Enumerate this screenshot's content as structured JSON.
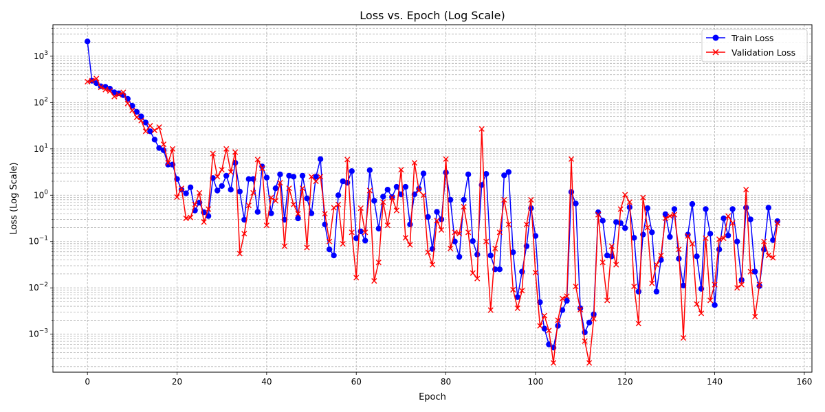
{
  "chart_data": {
    "type": "line",
    "title": "Loss vs. Epoch (Log Scale)",
    "xlabel": "Epoch",
    "ylabel": "Loss (Log Scale)",
    "yscale": "log",
    "xlim": [
      -7.7,
      161.7
    ],
    "ylim_log10": [
      -3.82,
      3.68
    ],
    "x_ticks": [
      0,
      20,
      40,
      60,
      80,
      100,
      120,
      140,
      160
    ],
    "x_tick_labels": [
      "0",
      "20",
      "40",
      "60",
      "80",
      "100",
      "120",
      "140",
      "160"
    ],
    "y_tick_exponents": [
      -3,
      -2,
      -1,
      0,
      1,
      2,
      3
    ],
    "grid": true,
    "legend_position": "top-right",
    "series": [
      {
        "name": "Train Loss",
        "color": "#0000ff",
        "marker": "circle",
        "x_start": 0,
        "log10_values": [
          3.32,
          2.47,
          2.42,
          2.35,
          2.34,
          2.3,
          2.22,
          2.2,
          2.16,
          2.08,
          1.93,
          1.8,
          1.7,
          1.57,
          1.38,
          1.2,
          1.02,
          0.97,
          0.66,
          0.66,
          0.35,
          0.12,
          0.04,
          0.17,
          -0.33,
          -0.16,
          -0.37,
          -0.45,
          0.37,
          0.1,
          0.2,
          0.42,
          0.12,
          0.7,
          0.08,
          -0.53,
          0.35,
          0.35,
          -0.36,
          0.62,
          0.38,
          -0.39,
          0.15,
          0.45,
          -0.53,
          0.42,
          0.4,
          -0.5,
          0.42,
          -0.07,
          -0.39,
          0.4,
          0.78,
          -0.63,
          -1.17,
          -1.3,
          0.0,
          0.3,
          0.27,
          0.52,
          -0.93,
          -0.78,
          -0.98,
          0.54,
          -0.12,
          -0.72,
          -0.03,
          0.12,
          -0.04,
          0.18,
          0.02,
          0.18,
          -0.63,
          0.02,
          0.14,
          0.47,
          -0.47,
          -1.16,
          -0.36,
          -0.52,
          0.49,
          -0.1,
          -1.0,
          -1.33,
          -0.1,
          0.45,
          -0.99,
          -1.28,
          0.22,
          0.46,
          -1.3,
          -1.6,
          -1.6,
          0.43,
          0.5,
          -1.23,
          -2.2,
          -1.65,
          -1.1,
          -0.28,
          -0.88,
          -2.31,
          -2.88,
          -3.22,
          -3.29,
          -2.82,
          -2.48,
          -2.28,
          0.07,
          -0.18,
          -2.44,
          -2.96,
          -2.75,
          -2.57,
          -0.37,
          -0.55,
          -1.3,
          -1.32,
          -0.58,
          -0.6,
          -0.71,
          -0.26,
          -0.92,
          -2.08,
          -0.85,
          -0.28,
          -0.8,
          -2.08,
          -1.4,
          -0.41,
          -0.9,
          -0.3,
          -1.37,
          -1.95,
          -0.85,
          -0.19,
          -1.32,
          -2.02,
          -0.3,
          -0.83,
          -2.37,
          -1.17,
          -0.5,
          -0.87,
          -0.3,
          -1.0,
          -1.83,
          -0.27,
          -0.52,
          -1.65,
          -1.96,
          -1.17,
          -0.27,
          -0.97,
          -0.56
        ]
      },
      {
        "name": "Validation Loss",
        "color": "#ff0000",
        "marker": "x",
        "x_start": 0,
        "log10_values": [
          2.45,
          2.47,
          2.52,
          2.33,
          2.28,
          2.25,
          2.13,
          2.17,
          2.22,
          1.98,
          1.83,
          1.68,
          1.61,
          1.38,
          1.5,
          1.4,
          1.47,
          1.1,
          0.7,
          1.0,
          -0.04,
          0.15,
          -0.5,
          -0.48,
          -0.2,
          0.05,
          -0.58,
          -0.3,
          0.9,
          0.4,
          0.55,
          1.0,
          0.5,
          0.93,
          -1.26,
          -0.83,
          -0.22,
          0.05,
          0.77,
          0.58,
          -0.65,
          -0.05,
          -0.12,
          0.27,
          -1.1,
          0.15,
          -0.2,
          -0.4,
          0.15,
          -1.13,
          0.4,
          0.3,
          0.4,
          -0.4,
          -1.0,
          -0.27,
          -0.2,
          -1.05,
          0.77,
          -0.8,
          -1.78,
          -0.28,
          -0.8,
          0.1,
          -1.85,
          -1.45,
          -0.15,
          -0.65,
          -0.05,
          -0.33,
          0.55,
          -0.92,
          -1.07,
          0.7,
          0.1,
          0.0,
          -1.23,
          -1.5,
          -0.55,
          -0.75,
          0.78,
          -1.15,
          -0.8,
          -0.83,
          -0.25,
          -0.8,
          -1.68,
          -1.8,
          1.43,
          -1.0,
          -2.48,
          -1.15,
          -0.8,
          -0.1,
          -0.63,
          -2.04,
          -2.44,
          -2.06,
          -0.63,
          -0.1,
          -1.67,
          -2.82,
          -2.6,
          -2.92,
          -3.62,
          -2.7,
          -2.23,
          -2.18,
          0.78,
          -1.97,
          -2.47,
          -3.15,
          -3.62,
          -2.67,
          -0.42,
          -1.45,
          -2.27,
          -1.1,
          -1.5,
          -0.3,
          0.01,
          -0.15,
          -1.97,
          -2.77,
          -0.05,
          -0.7,
          -1.9,
          -1.5,
          -1.3,
          -0.5,
          -0.45,
          -0.42,
          -1.17,
          -3.08,
          -0.88,
          -1.05,
          -2.35,
          -2.55,
          -0.93,
          -2.27,
          -1.93,
          -0.95,
          -0.93,
          -0.45,
          -0.6,
          -2.0,
          -1.93,
          0.12,
          -1.65,
          -2.62,
          -1.93,
          -1.0,
          -1.3,
          -1.35,
          -0.6
        ]
      }
    ]
  }
}
